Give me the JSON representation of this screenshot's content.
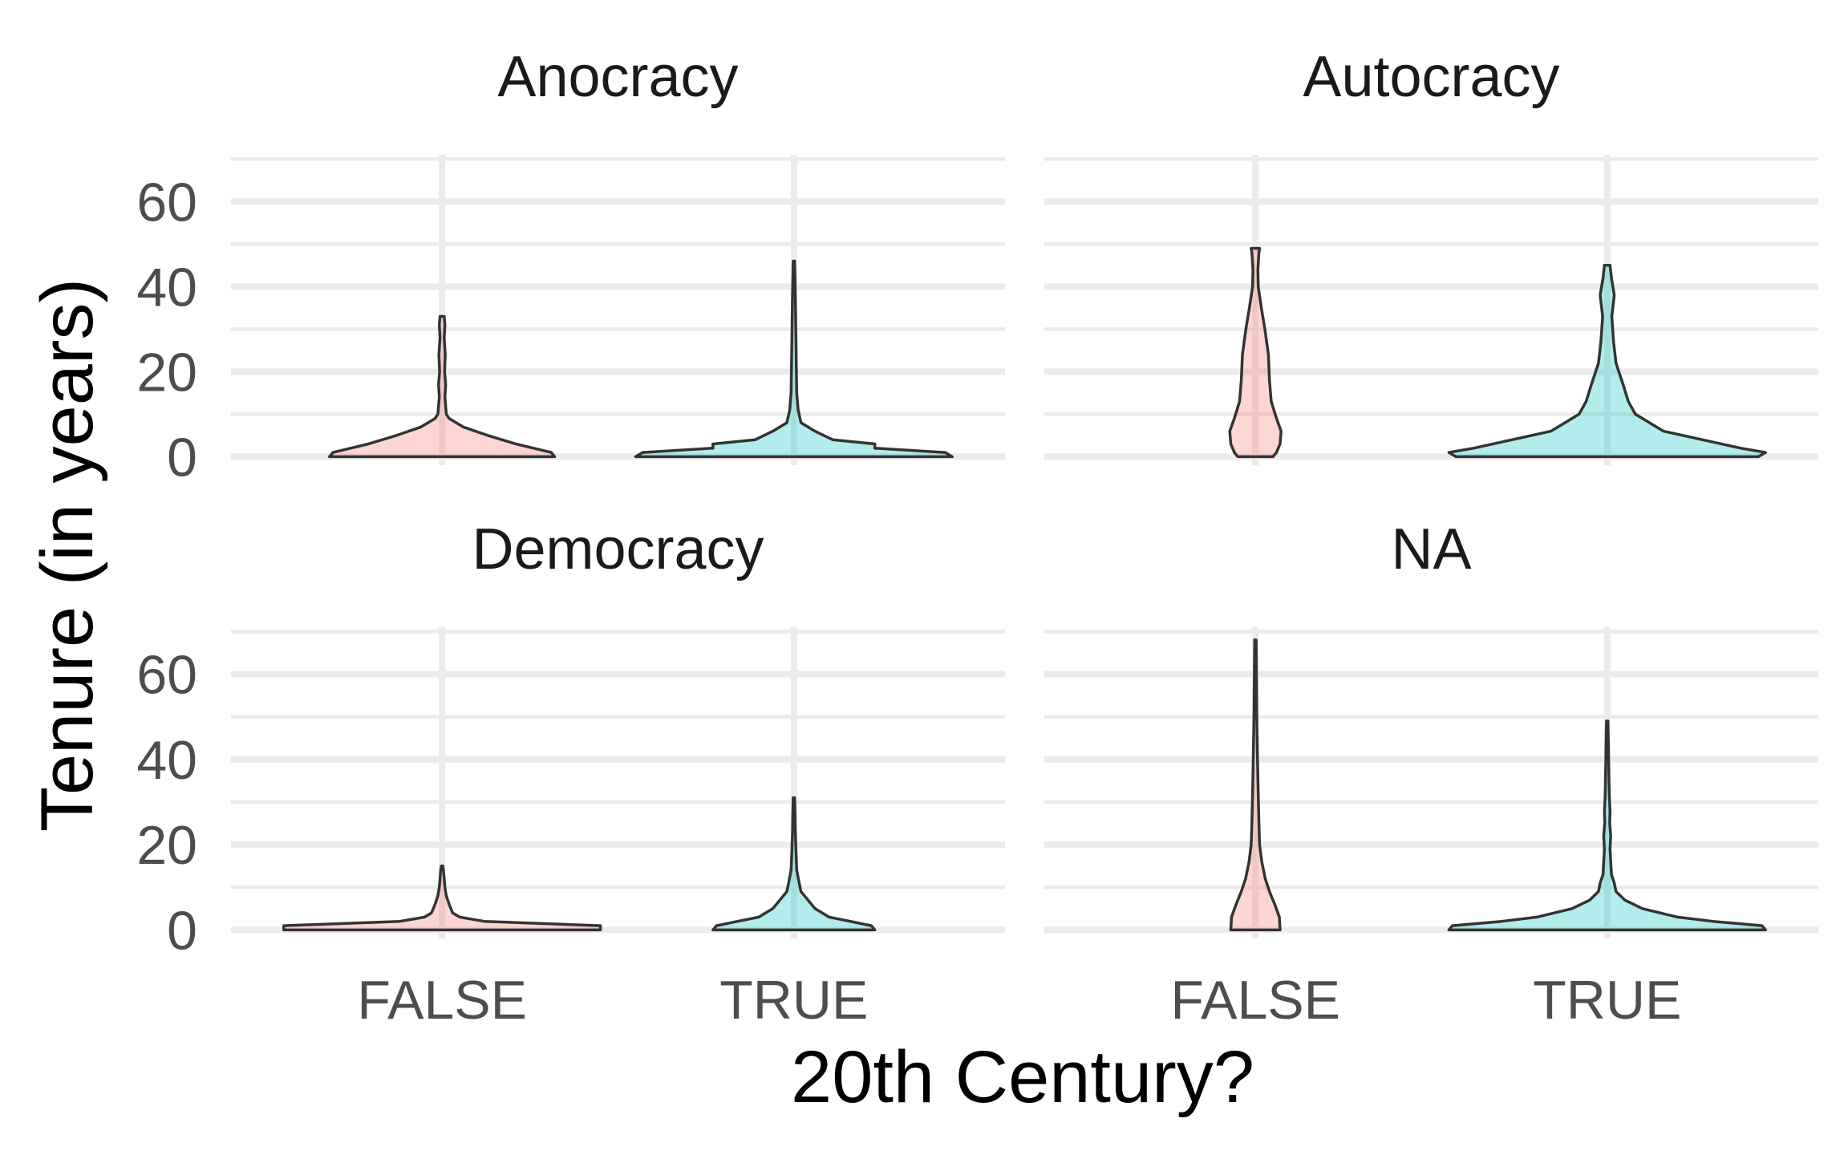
{
  "chart_data": {
    "type": "violin",
    "xlabel": "20th Century?",
    "ylabel": "Tenure (in years)",
    "categories": [
      "FALSE",
      "TRUE"
    ],
    "ylim": [
      -2,
      71
    ],
    "yticks": [
      0,
      20,
      40,
      60
    ],
    "grid": true,
    "legend": "none",
    "colors": {
      "FALSE": "#F8766D",
      "TRUE": "#00BFC4",
      "fill_opacity": 0.3,
      "outline": "#333333"
    },
    "panels": [
      {
        "title": "Anocracy",
        "violins": [
          {
            "x": "FALSE",
            "y": [
              0,
              1,
              2,
              3,
              5,
              7,
              9,
              10,
              12,
              14,
              17,
              20,
              24,
              28,
              31,
              33
            ],
            "halfwidth": [
              0.32,
              0.31,
              0.26,
              0.21,
              0.13,
              0.06,
              0.02,
              0.012,
              0.01,
              0.008,
              0.01,
              0.007,
              0.009,
              0.006,
              0.008,
              0.006
            ]
          },
          {
            "x": "TRUE",
            "y": [
              0,
              1,
              2,
              3,
              4,
              6,
              8,
              11,
              15,
              20,
              26,
              32,
              38,
              46
            ],
            "halfwidth": [
              0.45,
              0.43,
              0.23,
              0.23,
              0.11,
              0.06,
              0.02,
              0.012,
              0.008,
              0.007,
              0.006,
              0.005,
              0.004,
              0.002
            ]
          }
        ]
      },
      {
        "title": "Autocracy",
        "violins": [
          {
            "x": "FALSE",
            "y": [
              0,
              1,
              3,
              6,
              9,
              13,
              18,
              24,
              30,
              35,
              40,
              44,
              48,
              49
            ],
            "halfwidth": [
              0.05,
              0.06,
              0.07,
              0.073,
              0.06,
              0.045,
              0.04,
              0.037,
              0.027,
              0.017,
              0.008,
              0.007,
              0.01,
              0.012
            ]
          },
          {
            "x": "TRUE",
            "y": [
              0,
              1,
              2,
              4,
              6,
              8,
              10,
              13,
              17,
              22,
              27,
              33,
              38,
              42,
              45
            ],
            "halfwidth": [
              0.43,
              0.45,
              0.38,
              0.27,
              0.16,
              0.12,
              0.08,
              0.06,
              0.045,
              0.025,
              0.018,
              0.013,
              0.02,
              0.012,
              0.008
            ]
          }
        ]
      },
      {
        "title": "Democracy",
        "violins": [
          {
            "x": "FALSE",
            "y": [
              0,
              1,
              2,
              3,
              4,
              6,
              8,
              10,
              12,
              14,
              15
            ],
            "halfwidth": [
              0.45,
              0.45,
              0.12,
              0.05,
              0.03,
              0.02,
              0.012,
              0.008,
              0.006,
              0.004,
              0.002
            ]
          },
          {
            "x": "TRUE",
            "y": [
              0,
              1,
              2,
              3,
              5,
              7,
              9,
              11,
              14,
              18,
              23,
              28,
              31
            ],
            "halfwidth": [
              0.23,
              0.22,
              0.16,
              0.1,
              0.06,
              0.04,
              0.02,
              0.015,
              0.008,
              0.006,
              0.004,
              0.003,
              0.002
            ]
          }
        ]
      },
      {
        "title": "NA",
        "violins": [
          {
            "x": "FALSE",
            "y": [
              0,
              3,
              6,
              9,
              12,
              16,
              20,
              25,
              32,
              40,
              50,
              60,
              68
            ],
            "halfwidth": [
              0.07,
              0.068,
              0.055,
              0.04,
              0.028,
              0.018,
              0.012,
              0.01,
              0.008,
              0.006,
              0.004,
              0.003,
              0.002
            ]
          },
          {
            "x": "TRUE",
            "y": [
              0,
              1,
              2,
              3,
              5,
              7,
              9,
              11,
              13,
              16,
              19,
              22,
              25,
              28,
              31,
              35,
              40,
              45,
              49
            ],
            "halfwidth": [
              0.45,
              0.44,
              0.3,
              0.2,
              0.1,
              0.05,
              0.025,
              0.02,
              0.012,
              0.01,
              0.008,
              0.01,
              0.007,
              0.008,
              0.006,
              0.005,
              0.004,
              0.003,
              0.002
            ]
          }
        ]
      }
    ]
  }
}
